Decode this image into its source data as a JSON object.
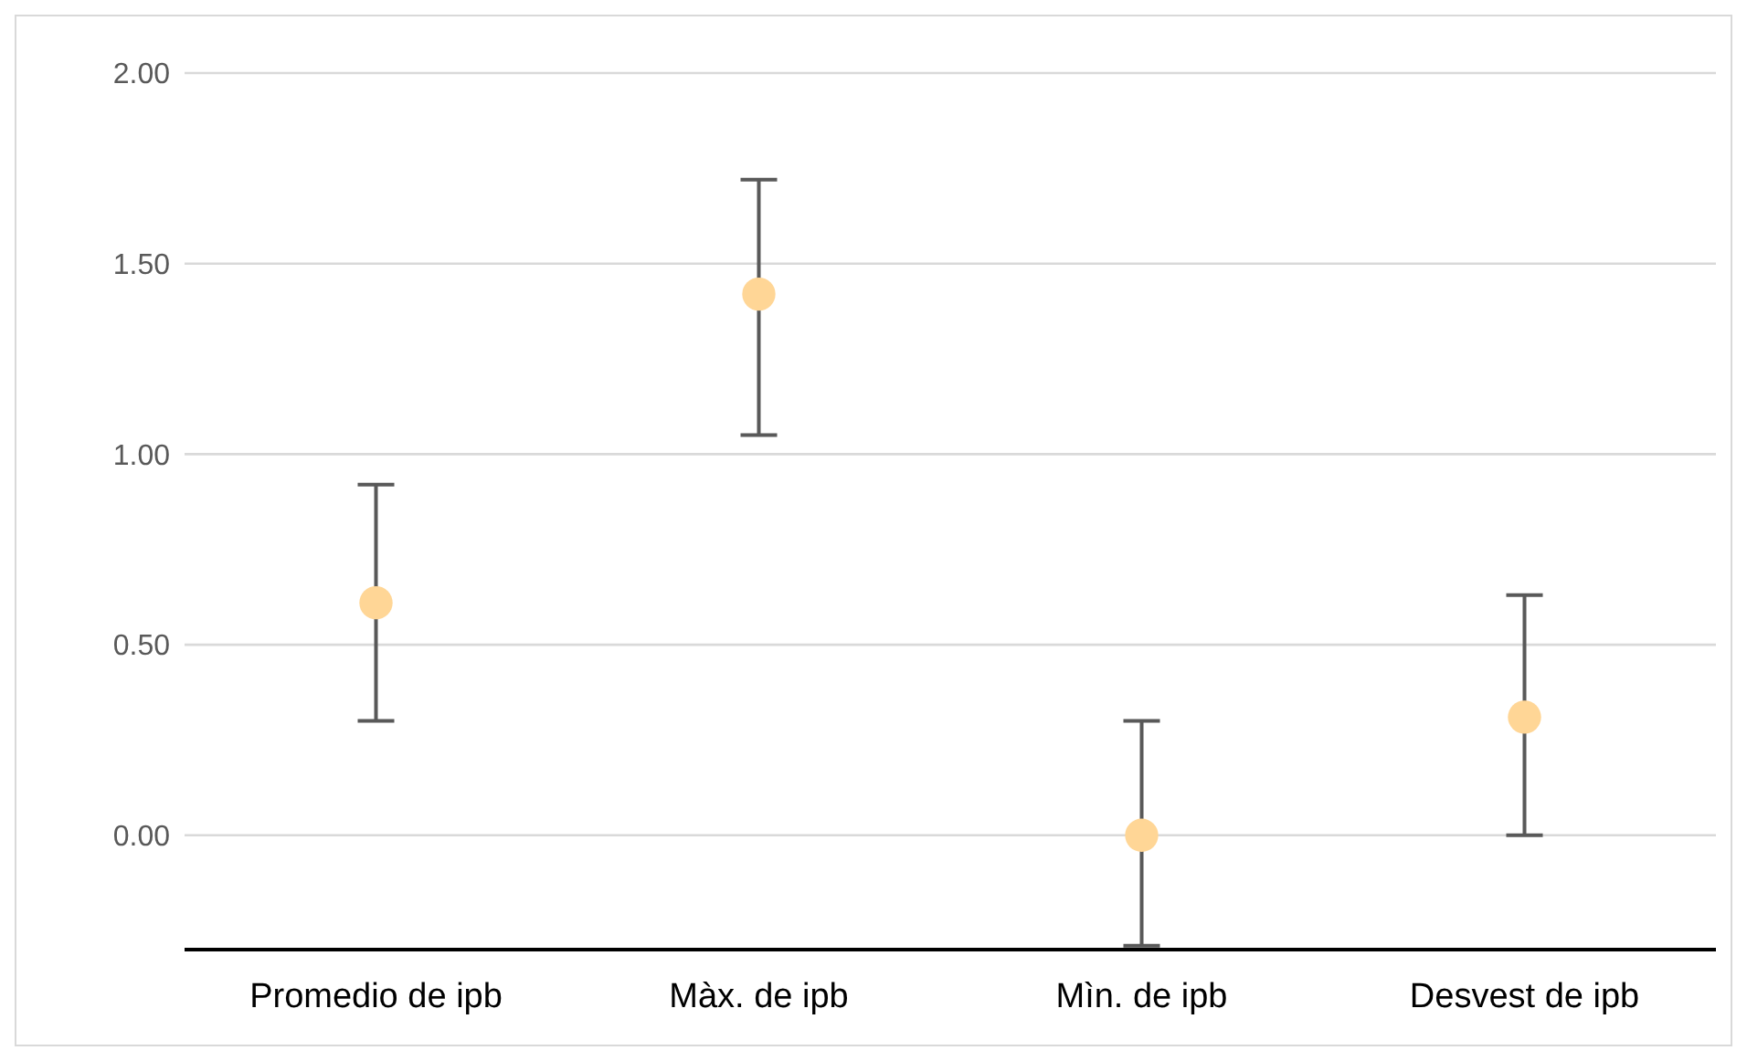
{
  "chart_data": {
    "type": "scatter",
    "categories": [
      "Promedio de ipb",
      "Màx. de ipb",
      "Mìn. de ipb",
      "Desvest de ipb"
    ],
    "series": [
      {
        "color": "#ffd696",
        "values": [
          0.61,
          1.42,
          0.0,
          0.31
        ],
        "errors": [
          [
            0.3,
            0.92
          ],
          [
            1.05,
            1.72
          ],
          [
            -0.29,
            0.3
          ],
          [
            0.0,
            0.63
          ]
        ]
      }
    ],
    "ylim": [
      -0.3,
      2.0
    ],
    "yticks": [
      {
        "value": 0,
        "label": "0.00"
      },
      {
        "value": 0.5,
        "label": "0.50"
      },
      {
        "value": 1,
        "label": "1.00"
      },
      {
        "value": 1.5,
        "label": "1.50"
      },
      {
        "value": 2,
        "label": "2.00"
      }
    ],
    "grid": "y",
    "marker": "circle"
  }
}
